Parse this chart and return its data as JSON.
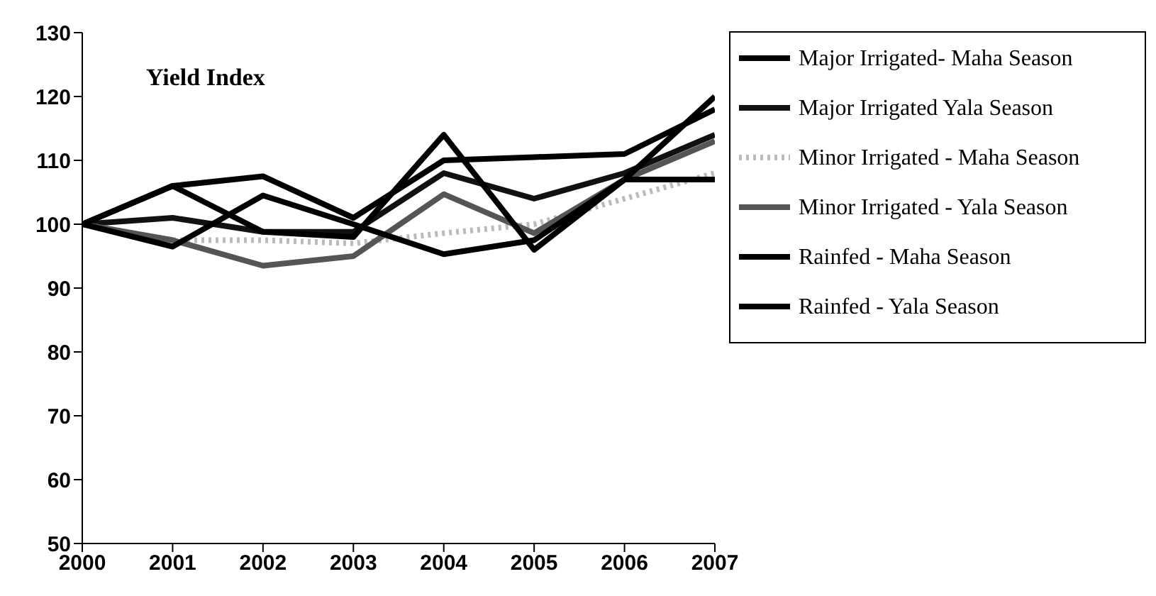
{
  "chart_data": {
    "type": "line",
    "title": "Yield Index",
    "x": [
      2000,
      2001,
      2002,
      2003,
      2004,
      2005,
      2006,
      2007
    ],
    "xlim": [
      2000,
      2007
    ],
    "xticks": [
      2000,
      2001,
      2002,
      2003,
      2004,
      2005,
      2006,
      2007
    ],
    "ylim": [
      50,
      130
    ],
    "yticks": [
      50,
      60,
      70,
      80,
      90,
      100,
      110,
      120,
      130
    ],
    "legend": "right",
    "marker": "none",
    "series": [
      {
        "name": "Major Irrigated- Maha Season",
        "color": "#000000",
        "values": [
          100,
          106,
          107.5,
          101,
          110,
          110.5,
          111,
          118
        ]
      },
      {
        "name": "Major Irrigated Yala Season",
        "color": "#111111",
        "values": [
          100,
          101,
          98.8,
          98.8,
          108,
          104,
          108,
          114
        ]
      },
      {
        "name": "Minor Irrigated - Maha Season",
        "color": "#bbbbbb",
        "line_style": "dotted",
        "values": [
          100,
          97.5,
          97.5,
          97,
          98.6,
          100,
          104,
          108
        ]
      },
      {
        "name": "Minor Irrigated - Yala Season",
        "color": "#555555",
        "values": [
          100,
          97.5,
          93.5,
          95,
          104.7,
          98.6,
          107,
          113
        ]
      },
      {
        "name": "Rainfed - Maha Season",
        "color": "#000000",
        "values": [
          100,
          106,
          98.8,
          98,
          114,
          96,
          107,
          120
        ]
      },
      {
        "name": "Rainfed - Yala Season",
        "color": "#000000",
        "values": [
          100,
          96.5,
          104.5,
          100,
          95.3,
          97.5,
          107,
          107
        ]
      }
    ]
  }
}
